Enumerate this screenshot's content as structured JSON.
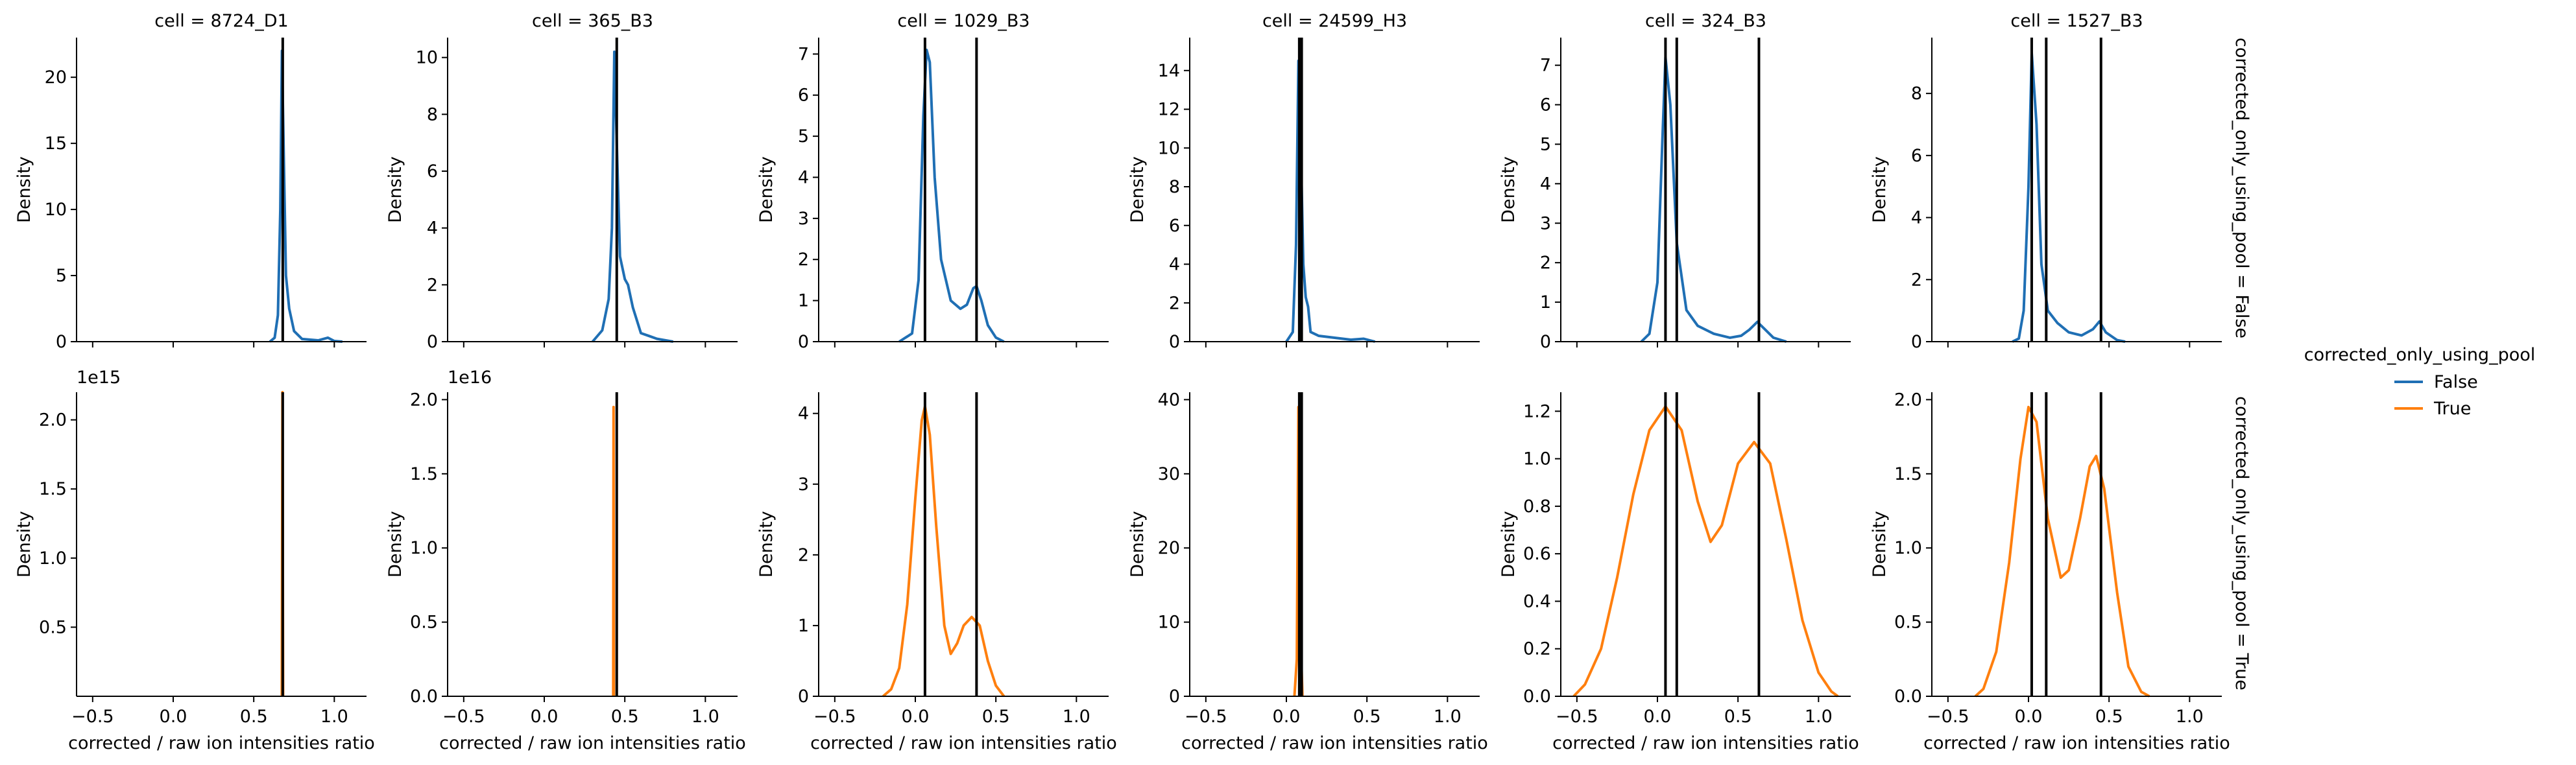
{
  "figure": {
    "row_var": "corrected_only_using_pool",
    "col_var": "cell",
    "shared_xlabel": "corrected / raw ion intensities ratio",
    "shared_ylabel": "Density",
    "x_ticks": [
      -0.5,
      0.0,
      0.5,
      1.0
    ],
    "x_tick_labels": [
      "−0.5",
      "0.0",
      "0.5",
      "1.0"
    ],
    "xlim": [
      -0.6,
      1.2
    ],
    "row_labels": [
      "corrected_only_using_pool = False",
      "corrected_only_using_pool = True"
    ],
    "col_titles": [
      "cell = 8724_D1",
      "cell = 365_B3",
      "cell = 1029_B3",
      "cell = 24599_H3",
      "cell = 324_B3",
      "cell = 1527_B3"
    ]
  },
  "legend": {
    "title": "corrected_only_using_pool",
    "placement": "right",
    "entries": [
      {
        "label": "False",
        "color": "#1f6fb4"
      },
      {
        "label": "True",
        "color": "#ff7f0e"
      }
    ]
  },
  "chart_data": {
    "type": "line",
    "kind": "kde facet grid",
    "series": [
      {
        "name": "False",
        "color": "#1f6fb4"
      },
      {
        "name": "True",
        "color": "#ff7f0e"
      }
    ],
    "panels": [
      {
        "row": 0,
        "col": 0,
        "ylim": [
          0,
          23
        ],
        "yticks": [
          0,
          5,
          10,
          15,
          20
        ],
        "ytick_labels": [
          "0",
          "5",
          "10",
          "15",
          "20"
        ],
        "offset_label": "",
        "vlines": [
          0.68
        ],
        "series": "False",
        "curve": [
          [
            0.6,
            0
          ],
          [
            0.63,
            0.3
          ],
          [
            0.65,
            2
          ],
          [
            0.665,
            10
          ],
          [
            0.675,
            22
          ],
          [
            0.685,
            15
          ],
          [
            0.7,
            5
          ],
          [
            0.72,
            2.5
          ],
          [
            0.75,
            0.8
          ],
          [
            0.8,
            0.2
          ],
          [
            0.9,
            0.1
          ],
          [
            0.96,
            0.3
          ],
          [
            1.0,
            0.05
          ],
          [
            1.05,
            0
          ]
        ]
      },
      {
        "row": 0,
        "col": 1,
        "ylim": [
          0,
          10.7
        ],
        "yticks": [
          0,
          2,
          4,
          6,
          8,
          10
        ],
        "ytick_labels": [
          "0",
          "2",
          "4",
          "6",
          "8",
          "10"
        ],
        "offset_label": "",
        "vlines": [
          0.45
        ],
        "series": "False",
        "curve": [
          [
            0.3,
            0
          ],
          [
            0.36,
            0.4
          ],
          [
            0.4,
            1.5
          ],
          [
            0.42,
            4
          ],
          [
            0.435,
            10.2
          ],
          [
            0.45,
            7
          ],
          [
            0.47,
            3
          ],
          [
            0.5,
            2.2
          ],
          [
            0.52,
            2.0
          ],
          [
            0.55,
            1.2
          ],
          [
            0.6,
            0.3
          ],
          [
            0.65,
            0.2
          ],
          [
            0.7,
            0.1
          ],
          [
            0.8,
            0
          ]
        ]
      },
      {
        "row": 0,
        "col": 2,
        "ylim": [
          0,
          7.4
        ],
        "yticks": [
          0,
          1,
          2,
          3,
          4,
          5,
          6,
          7
        ],
        "ytick_labels": [
          "0",
          "1",
          "2",
          "3",
          "4",
          "5",
          "6",
          "7"
        ],
        "offset_label": "",
        "vlines": [
          0.06,
          0.38
        ],
        "series": "False",
        "curve": [
          [
            -0.1,
            0
          ],
          [
            -0.02,
            0.2
          ],
          [
            0.02,
            1.5
          ],
          [
            0.05,
            5.5
          ],
          [
            0.07,
            7.1
          ],
          [
            0.09,
            6.8
          ],
          [
            0.12,
            4
          ],
          [
            0.16,
            2.0
          ],
          [
            0.22,
            1.0
          ],
          [
            0.28,
            0.8
          ],
          [
            0.32,
            0.9
          ],
          [
            0.36,
            1.3
          ],
          [
            0.38,
            1.35
          ],
          [
            0.41,
            1.0
          ],
          [
            0.45,
            0.4
          ],
          [
            0.5,
            0.1
          ],
          [
            0.55,
            0
          ]
        ]
      },
      {
        "row": 0,
        "col": 3,
        "ylim": [
          0,
          15.7
        ],
        "yticks": [
          0,
          2,
          4,
          6,
          8,
          10,
          12,
          14
        ],
        "ytick_labels": [
          "0",
          "2",
          "4",
          "6",
          "8",
          "10",
          "12",
          "14"
        ],
        "offset_label": "",
        "vlines": [
          0.08,
          0.095
        ],
        "series": "False",
        "curve": [
          [
            0.0,
            0
          ],
          [
            0.04,
            0.5
          ],
          [
            0.06,
            5
          ],
          [
            0.075,
            14.5
          ],
          [
            0.09,
            10
          ],
          [
            0.105,
            4
          ],
          [
            0.12,
            2.3
          ],
          [
            0.135,
            1.8
          ],
          [
            0.15,
            0.5
          ],
          [
            0.2,
            0.3
          ],
          [
            0.3,
            0.2
          ],
          [
            0.4,
            0.1
          ],
          [
            0.48,
            0.15
          ],
          [
            0.55,
            0
          ]
        ]
      },
      {
        "row": 0,
        "col": 4,
        "ylim": [
          0,
          7.7
        ],
        "yticks": [
          0,
          1,
          2,
          3,
          4,
          5,
          6,
          7
        ],
        "ytick_labels": [
          "0",
          "1",
          "2",
          "3",
          "4",
          "5",
          "6",
          "7"
        ],
        "offset_label": "",
        "vlines": [
          0.05,
          0.12,
          0.63
        ],
        "series": "False",
        "curve": [
          [
            -0.1,
            0
          ],
          [
            -0.05,
            0.2
          ],
          [
            0.0,
            1.5
          ],
          [
            0.03,
            5
          ],
          [
            0.05,
            7.2
          ],
          [
            0.08,
            6
          ],
          [
            0.12,
            2.5
          ],
          [
            0.18,
            0.8
          ],
          [
            0.25,
            0.4
          ],
          [
            0.35,
            0.2
          ],
          [
            0.45,
            0.1
          ],
          [
            0.52,
            0.15
          ],
          [
            0.57,
            0.3
          ],
          [
            0.62,
            0.5
          ],
          [
            0.67,
            0.3
          ],
          [
            0.72,
            0.1
          ],
          [
            0.8,
            0
          ]
        ]
      },
      {
        "row": 0,
        "col": 5,
        "ylim": [
          0,
          9.8
        ],
        "yticks": [
          0,
          2,
          4,
          6,
          8
        ],
        "ytick_labels": [
          "0",
          "2",
          "4",
          "6",
          "8"
        ],
        "offset_label": "",
        "vlines": [
          0.02,
          0.11,
          0.45
        ],
        "series": "False",
        "curve": [
          [
            -0.1,
            0
          ],
          [
            -0.06,
            0.1
          ],
          [
            -0.03,
            1
          ],
          [
            0.0,
            5
          ],
          [
            0.02,
            9.3
          ],
          [
            0.05,
            7
          ],
          [
            0.08,
            2.5
          ],
          [
            0.12,
            1.0
          ],
          [
            0.18,
            0.6
          ],
          [
            0.25,
            0.3
          ],
          [
            0.33,
            0.2
          ],
          [
            0.4,
            0.4
          ],
          [
            0.44,
            0.65
          ],
          [
            0.48,
            0.3
          ],
          [
            0.55,
            0.05
          ],
          [
            0.6,
            0
          ]
        ]
      },
      {
        "row": 1,
        "col": 0,
        "ylim": [
          0,
          2.2
        ],
        "yticks": [
          0.5,
          1.0,
          1.5,
          2.0
        ],
        "ytick_labels": [
          "0.5",
          "1.0",
          "1.5",
          "2.0"
        ],
        "offset_label": "1e15",
        "vlines": [
          0.68
        ],
        "series": "True",
        "curve": [
          [
            0.674,
            0
          ],
          [
            0.678,
            2.2
          ],
          [
            0.682,
            0
          ]
        ]
      },
      {
        "row": 1,
        "col": 1,
        "ylim": [
          0,
          2.05
        ],
        "yticks": [
          0.0,
          0.5,
          1.0,
          1.5,
          2.0
        ],
        "ytick_labels": [
          "0.0",
          "0.5",
          "1.0",
          "1.5",
          "2.0"
        ],
        "offset_label": "1e16",
        "vlines": [
          0.45
        ],
        "series": "True",
        "curve": [
          [
            0.428,
            0
          ],
          [
            0.43,
            1.95
          ],
          [
            0.432,
            0
          ]
        ]
      },
      {
        "row": 1,
        "col": 2,
        "ylim": [
          0,
          4.3
        ],
        "yticks": [
          0,
          1,
          2,
          3,
          4
        ],
        "ytick_labels": [
          "0",
          "1",
          "2",
          "3",
          "4"
        ],
        "offset_label": "",
        "vlines": [
          0.06,
          0.38
        ],
        "series": "True",
        "curve": [
          [
            -0.2,
            0
          ],
          [
            -0.15,
            0.1
          ],
          [
            -0.1,
            0.4
          ],
          [
            -0.05,
            1.3
          ],
          [
            0.0,
            2.8
          ],
          [
            0.04,
            3.9
          ],
          [
            0.06,
            4.1
          ],
          [
            0.09,
            3.7
          ],
          [
            0.13,
            2.4
          ],
          [
            0.18,
            1.0
          ],
          [
            0.22,
            0.6
          ],
          [
            0.26,
            0.75
          ],
          [
            0.3,
            1.0
          ],
          [
            0.35,
            1.12
          ],
          [
            0.4,
            1.0
          ],
          [
            0.45,
            0.5
          ],
          [
            0.5,
            0.15
          ],
          [
            0.55,
            0
          ]
        ]
      },
      {
        "row": 1,
        "col": 3,
        "ylim": [
          0,
          41
        ],
        "yticks": [
          0,
          10,
          20,
          30,
          40
        ],
        "ytick_labels": [
          "0",
          "10",
          "20",
          "30",
          "40"
        ],
        "offset_label": "",
        "vlines": [
          0.08,
          0.095
        ],
        "series": "True",
        "curve": [
          [
            0.05,
            0
          ],
          [
            0.065,
            5
          ],
          [
            0.075,
            39
          ],
          [
            0.085,
            10
          ],
          [
            0.1,
            0
          ]
        ]
      },
      {
        "row": 1,
        "col": 4,
        "ylim": [
          0,
          1.28
        ],
        "yticks": [
          0.0,
          0.2,
          0.4,
          0.6,
          0.8,
          1.0,
          1.2
        ],
        "ytick_labels": [
          "0.0",
          "0.2",
          "0.4",
          "0.6",
          "0.8",
          "1.0",
          "1.2"
        ],
        "offset_label": "",
        "vlines": [
          0.05,
          0.12,
          0.63
        ],
        "series": "True",
        "curve": [
          [
            -0.52,
            0
          ],
          [
            -0.45,
            0.05
          ],
          [
            -0.35,
            0.2
          ],
          [
            -0.25,
            0.5
          ],
          [
            -0.15,
            0.85
          ],
          [
            -0.05,
            1.12
          ],
          [
            0.05,
            1.22
          ],
          [
            0.15,
            1.12
          ],
          [
            0.25,
            0.82
          ],
          [
            0.33,
            0.65
          ],
          [
            0.4,
            0.72
          ],
          [
            0.5,
            0.98
          ],
          [
            0.6,
            1.07
          ],
          [
            0.7,
            0.98
          ],
          [
            0.8,
            0.66
          ],
          [
            0.9,
            0.32
          ],
          [
            1.0,
            0.1
          ],
          [
            1.08,
            0.02
          ],
          [
            1.12,
            0
          ]
        ]
      },
      {
        "row": 1,
        "col": 5,
        "ylim": [
          0,
          2.05
        ],
        "yticks": [
          0.0,
          0.5,
          1.0,
          1.5,
          2.0
        ],
        "ytick_labels": [
          "0.0",
          "0.5",
          "1.0",
          "1.5",
          "2.0"
        ],
        "offset_label": "",
        "vlines": [
          0.02,
          0.11,
          0.45
        ],
        "series": "True",
        "curve": [
          [
            -0.33,
            0
          ],
          [
            -0.28,
            0.05
          ],
          [
            -0.2,
            0.3
          ],
          [
            -0.12,
            0.9
          ],
          [
            -0.05,
            1.6
          ],
          [
            0.0,
            1.95
          ],
          [
            0.05,
            1.85
          ],
          [
            0.12,
            1.2
          ],
          [
            0.2,
            0.8
          ],
          [
            0.25,
            0.85
          ],
          [
            0.32,
            1.2
          ],
          [
            0.38,
            1.55
          ],
          [
            0.42,
            1.62
          ],
          [
            0.47,
            1.4
          ],
          [
            0.55,
            0.7
          ],
          [
            0.62,
            0.2
          ],
          [
            0.7,
            0.03
          ],
          [
            0.75,
            0
          ]
        ]
      }
    ]
  }
}
